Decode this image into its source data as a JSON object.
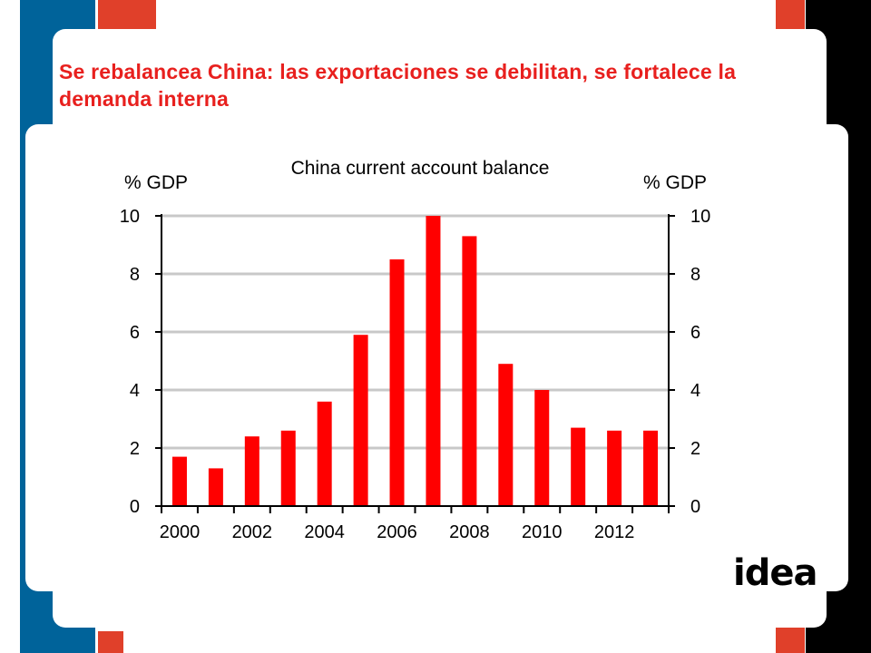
{
  "slide": {
    "title": "Se rebalancea China: las exportaciones se debilitan, se fortalece la demanda interna",
    "logo_text": "idea"
  },
  "colors": {
    "title_red": "#e8201e",
    "bar_red": "#ff0000",
    "side_blue": "#00639a",
    "accent_red": "#e0402a"
  },
  "chart_data": {
    "type": "bar",
    "title": "China current account balance",
    "ylabel_left": "% GDP",
    "ylabel_right": "% GDP",
    "ylim": [
      0,
      10
    ],
    "yticks": [
      0,
      2,
      4,
      6,
      8,
      10
    ],
    "grid": true,
    "x_tick_labels": [
      "2000",
      "2002",
      "2004",
      "2006",
      "2008",
      "2010",
      "2012"
    ],
    "categories": [
      "2000",
      "2001",
      "2002",
      "2003",
      "2004",
      "2005",
      "2006",
      "2007",
      "2008",
      "2009",
      "2010",
      "2011",
      "2012",
      "2013"
    ],
    "values": [
      1.7,
      1.3,
      2.4,
      2.6,
      3.6,
      5.9,
      8.5,
      10.0,
      9.3,
      4.9,
      4.0,
      2.7,
      2.6,
      2.6
    ]
  }
}
